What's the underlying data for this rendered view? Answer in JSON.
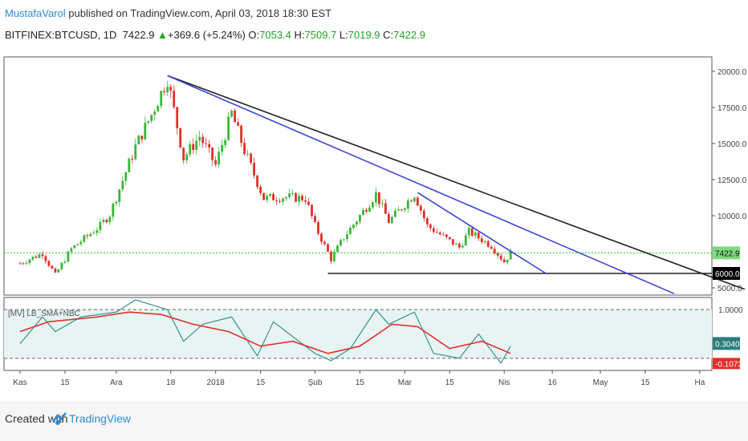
{
  "header": {
    "author": "MustafaVarol",
    "published": " published on TradingView.com, April 03, 2018 18:30 EST",
    "symbol": "BITFINEX:BTCUSD, 1D",
    "close_val": "7422.9",
    "change": "+369.6 (+5.24%)",
    "o_label": "O:",
    "o_val": "7053.4",
    "h_label": "H:",
    "h_val": "7509.7",
    "l_label": "L:",
    "l_val": "7019.9",
    "c_label": "C:",
    "c_val": "7422.9"
  },
  "footer": {
    "created": "Created with",
    "brand": "TradingView"
  },
  "colors": {
    "up": "#3cb53c",
    "down": "#e0302a",
    "blue_line": "#3a44d6",
    "black_line": "#222222",
    "green_level": "#27c427",
    "osc_teal": "#2b8a7f",
    "osc_red": "#e0302a",
    "osc_bg": "#e8f4f4"
  },
  "chart_data": [
    {
      "type": "candlestick",
      "symbol": "BITFINEX:BTCUSD",
      "interval": "1D",
      "ylim": [
        4500,
        21000
      ],
      "y_ticks": [
        "20000.0",
        "17500.0",
        "15000.0",
        "12500.0",
        "10000.0",
        "5000.0"
      ],
      "x_ticks": [
        "Kas",
        "15",
        "Ara",
        "18",
        "2018",
        "15",
        "Şub",
        "15",
        "Mar",
        "15",
        "Nis",
        "16",
        "May",
        "15",
        "Ha"
      ],
      "price_labels": {
        "last": "7422.9",
        "level": "6000.0"
      },
      "close_path": [
        [
          "2017-11-01",
          6700
        ],
        [
          "2017-11-08",
          7400
        ],
        [
          "2017-11-12",
          5900
        ],
        [
          "2017-11-17",
          7700
        ],
        [
          "2017-11-26",
          9300
        ],
        [
          "2017-11-29",
          10100
        ],
        [
          "2017-12-07",
          14800
        ],
        [
          "2017-12-12",
          17000
        ],
        [
          "2017-12-17",
          19500
        ],
        [
          "2017-12-22",
          14000
        ],
        [
          "2017-12-27",
          15500
        ],
        [
          "2018-01-01",
          13500
        ],
        [
          "2018-01-06",
          17100
        ],
        [
          "2018-01-10",
          14500
        ],
        [
          "2018-01-16",
          11200
        ],
        [
          "2018-01-22",
          11300
        ],
        [
          "2018-01-29",
          11200
        ],
        [
          "2018-02-01",
          9300
        ],
        [
          "2018-02-06",
          7000
        ],
        [
          "2018-02-10",
          8500
        ],
        [
          "2018-02-20",
          11500
        ],
        [
          "2018-02-24",
          9600
        ],
        [
          "2018-03-04",
          11500
        ],
        [
          "2018-03-08",
          9300
        ],
        [
          "2018-03-18",
          7800
        ],
        [
          "2018-03-21",
          8900
        ],
        [
          "2018-03-28",
          7900
        ],
        [
          "2018-04-01",
          6800
        ],
        [
          "2018-04-03",
          7422.9
        ]
      ],
      "horizontal_lines": [
        {
          "name": "green_level",
          "value": 7422.9
        },
        {
          "name": "black_level",
          "value": 6000,
          "from": "2018-02-05",
          "to": "2018-06-15"
        }
      ],
      "trend_lines": [
        {
          "name": "black_trend",
          "p1": [
            "2017-12-17",
            19700
          ],
          "p2": [
            "2018-06-15",
            4900
          ]
        },
        {
          "name": "blue_trend_1",
          "p1": [
            "2017-12-17",
            19700
          ],
          "p2": [
            "2018-05-24",
            4600
          ]
        },
        {
          "name": "blue_trend_2",
          "p1": [
            "2018-03-05",
            11600
          ],
          "p2": [
            "2018-04-14",
            6000
          ]
        }
      ]
    },
    {
      "type": "line",
      "label": "[MV] LB_SMA+NBC",
      "ylim": [
        -0.25,
        1.25
      ],
      "y_ticks": [
        "1.0000"
      ],
      "value_labels": {
        "upper": "0.3040",
        "lower": "-0.1073"
      },
      "dashed_levels": [
        1.0,
        0.0
      ],
      "series": [
        {
          "name": "oscillator",
          "values": [
            [
              "2017-11-01",
              0.3
            ],
            [
              "2017-11-08",
              0.85
            ],
            [
              "2017-11-12",
              0.55
            ],
            [
              "2017-11-20",
              0.85
            ],
            [
              "2017-12-01",
              0.95
            ],
            [
              "2017-12-07",
              1.2
            ],
            [
              "2017-12-17",
              1.0
            ],
            [
              "2017-12-22",
              0.35
            ],
            [
              "2017-12-28",
              0.7
            ],
            [
              "2018-01-06",
              0.85
            ],
            [
              "2018-01-14",
              0.05
            ],
            [
              "2018-01-19",
              0.75
            ],
            [
              "2018-01-26",
              0.4
            ],
            [
              "2018-02-01",
              0.1
            ],
            [
              "2018-02-06",
              -0.05
            ],
            [
              "2018-02-12",
              0.2
            ],
            [
              "2018-02-20",
              1.0
            ],
            [
              "2018-02-24",
              0.7
            ],
            [
              "2018-03-04",
              0.95
            ],
            [
              "2018-03-10",
              0.1
            ],
            [
              "2018-03-18",
              0.0
            ],
            [
              "2018-03-24",
              0.5
            ],
            [
              "2018-03-31",
              -0.1
            ],
            [
              "2018-04-03",
              0.25
            ]
          ]
        },
        {
          "name": "signal",
          "values": [
            [
              "2017-11-01",
              0.55
            ],
            [
              "2017-11-10",
              0.75
            ],
            [
              "2017-11-25",
              0.85
            ],
            [
              "2017-12-05",
              0.95
            ],
            [
              "2017-12-15",
              0.9
            ],
            [
              "2017-12-25",
              0.7
            ],
            [
              "2018-01-05",
              0.55
            ],
            [
              "2018-01-15",
              0.25
            ],
            [
              "2018-01-25",
              0.35
            ],
            [
              "2018-02-05",
              0.1
            ],
            [
              "2018-02-15",
              0.25
            ],
            [
              "2018-02-25",
              0.7
            ],
            [
              "2018-03-05",
              0.65
            ],
            [
              "2018-03-15",
              0.2
            ],
            [
              "2018-03-25",
              0.35
            ],
            [
              "2018-04-03",
              0.1
            ]
          ]
        }
      ]
    }
  ]
}
